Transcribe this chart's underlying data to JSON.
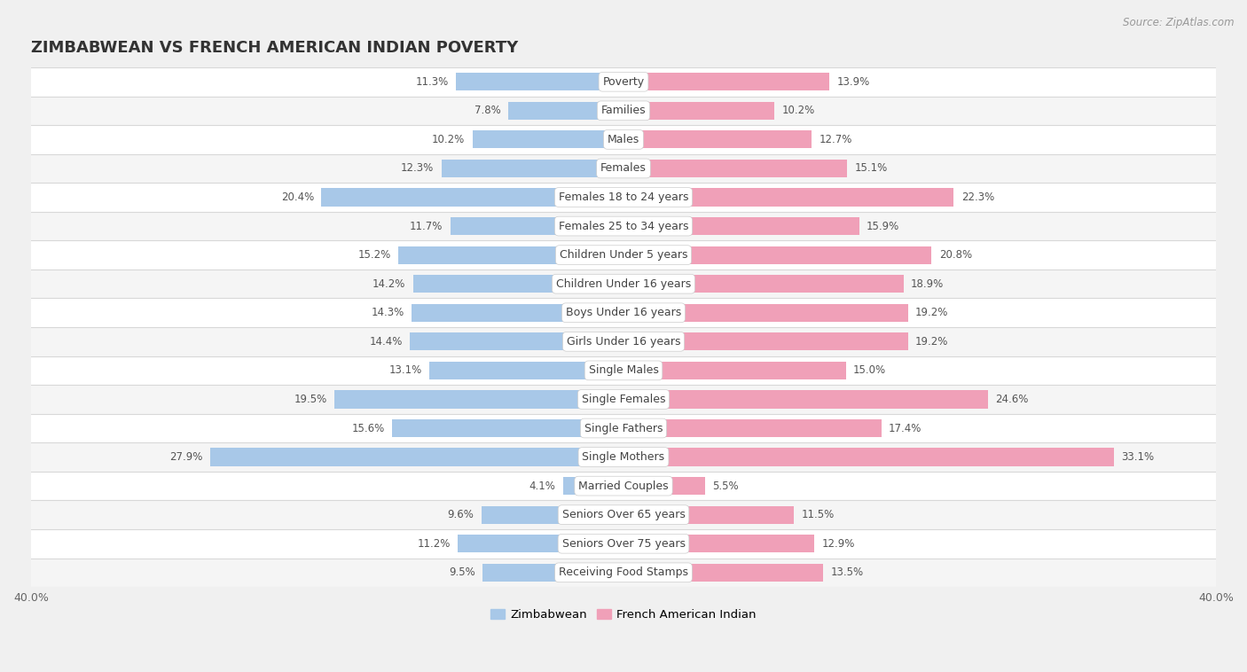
{
  "title": "ZIMBABWEAN VS FRENCH AMERICAN INDIAN POVERTY",
  "source": "Source: ZipAtlas.com",
  "categories": [
    "Poverty",
    "Families",
    "Males",
    "Females",
    "Females 18 to 24 years",
    "Females 25 to 34 years",
    "Children Under 5 years",
    "Children Under 16 years",
    "Boys Under 16 years",
    "Girls Under 16 years",
    "Single Males",
    "Single Females",
    "Single Fathers",
    "Single Mothers",
    "Married Couples",
    "Seniors Over 65 years",
    "Seniors Over 75 years",
    "Receiving Food Stamps"
  ],
  "zimbabwean": [
    11.3,
    7.8,
    10.2,
    12.3,
    20.4,
    11.7,
    15.2,
    14.2,
    14.3,
    14.4,
    13.1,
    19.5,
    15.6,
    27.9,
    4.1,
    9.6,
    11.2,
    9.5
  ],
  "french_american_indian": [
    13.9,
    10.2,
    12.7,
    15.1,
    22.3,
    15.9,
    20.8,
    18.9,
    19.2,
    19.2,
    15.0,
    24.6,
    17.4,
    33.1,
    5.5,
    11.5,
    12.9,
    13.5
  ],
  "zimbabwean_color": "#a8c8e8",
  "french_american_indian_color": "#f0a0b8",
  "row_color_light": "#f0f0f0",
  "row_color_dark": "#e8e8e8",
  "background_color": "#f0f0f0",
  "xlim": 40.0,
  "legend_labels": [
    "Zimbabwean",
    "French American Indian"
  ]
}
